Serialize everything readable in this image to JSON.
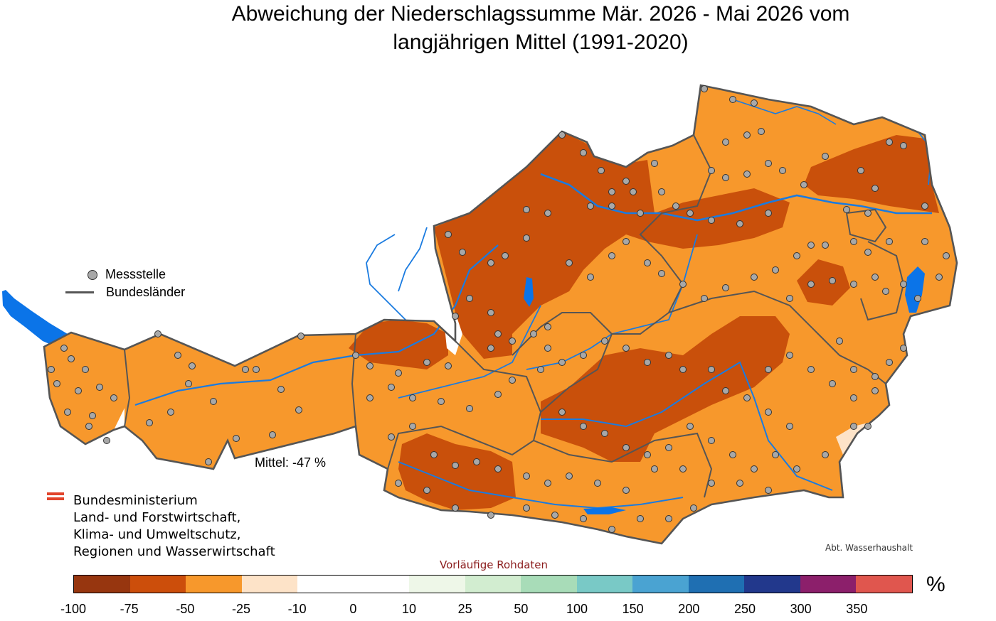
{
  "title_line1": "Abweichung der Niederschlagssumme Mär. 2026 - Mai 2026 vom",
  "title_line2": "langjährigen Mittel (1991-2020)",
  "legend": {
    "station": "Messstelle",
    "border": "Bundesländer"
  },
  "mittel": "Mittel: -47 %",
  "ministry": {
    "line1": "Bundesministerium",
    "line2": "Land- und Forstwirtschaft,",
    "line3": "Klima- und Umweltschutz,",
    "line4": "Regionen und Wasserwirtschaft"
  },
  "credit": "Abt. Wasserhaushalt",
  "note": "Vorläufige Rohdaten",
  "unit": "%",
  "scale": {
    "ticks": [
      "-100",
      "-75",
      "-50",
      "-25",
      "-10",
      "0",
      "10",
      "25",
      "50",
      "100",
      "150",
      "200",
      "250",
      "300",
      "350"
    ],
    "colors": [
      "#97360f",
      "#cc4e0b",
      "#f7982c",
      "#fde3c8",
      "#ffffff",
      "#ffffff",
      "#eef7e8",
      "#d2edd0",
      "#a8dcb8",
      "#79c9c6",
      "#4aa3d2",
      "#1f6fb2",
      "#22388c",
      "#8c1f6b",
      "#e0564e"
    ]
  },
  "colors": {
    "orange": "#f7982c",
    "dark": "#c9500b",
    "light": "#fde3c8",
    "river": "#1a7be0",
    "lake": "#0b74e8",
    "border": "#555555",
    "station": "#a8a8a8"
  }
}
